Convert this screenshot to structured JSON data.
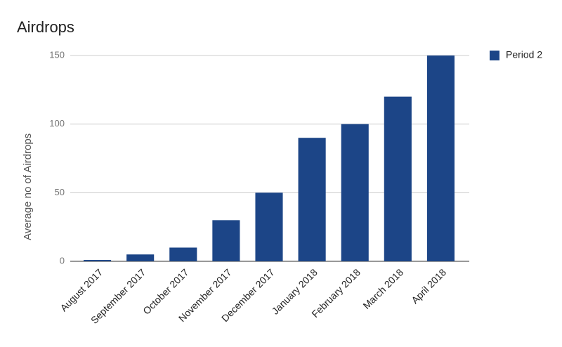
{
  "chart_data": {
    "type": "bar",
    "title": "Airdrops",
    "y_label": "Average no of Airdrops",
    "categories": [
      "August 2017",
      "September 2017",
      "October 2017",
      "November 2017",
      "December 2017",
      "January 2018",
      "February 2018",
      "March 2018",
      "April 2018"
    ],
    "series": [
      {
        "name": "Period 2",
        "color": "#1c4587",
        "values": [
          1,
          5,
          10,
          30,
          50,
          90,
          100,
          120,
          150
        ]
      }
    ],
    "ylim": [
      0,
      150
    ],
    "yticks": [
      0,
      50,
      100,
      150
    ],
    "grid": true,
    "legend": "right"
  }
}
